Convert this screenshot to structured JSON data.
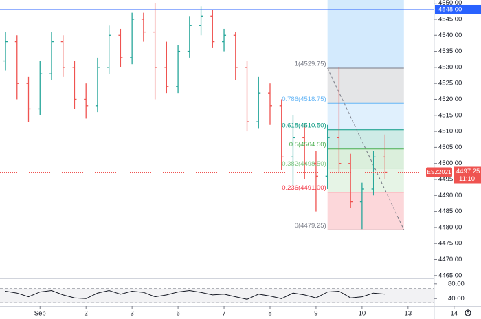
{
  "chart_data": {
    "type": "ohlc",
    "symbol": "ESZ2021",
    "last_time": "11:10",
    "up_color": "#26a69a",
    "down_color": "#ef5350",
    "x": [
      0.25,
      0.5,
      0.75,
      1.0,
      1.25,
      1.5,
      1.75,
      2.0,
      2.25,
      2.5,
      2.75,
      3.0,
      3.25,
      3.5,
      3.75,
      4.0,
      4.25,
      4.5,
      4.75,
      5.0,
      5.25,
      5.5,
      5.75,
      6.0,
      6.25,
      6.5,
      6.75,
      7.0,
      7.25,
      7.5,
      7.75,
      8.0,
      8.25,
      8.5
    ],
    "open": [
      4532,
      4538,
      4525,
      4517,
      4528,
      4538,
      4530,
      4520,
      4518,
      4530,
      4540,
      4533,
      4545,
      4541,
      4530,
      4524,
      4535,
      4543,
      4546,
      4538,
      4540,
      4530,
      4513,
      4522,
      4518,
      4502,
      4508,
      4500,
      4496,
      4508,
      4500,
      4488,
      4492,
      4502
    ],
    "high": [
      4541,
      4540,
      4527,
      4532,
      4541,
      4540,
      4532,
      4525,
      4533,
      4543,
      4542,
      4547,
      4547,
      4550,
      4538,
      4537,
      4546,
      4549,
      4548,
      4542,
      4541,
      4532,
      4527,
      4525,
      4520,
      4515,
      4512,
      4504,
      4512,
      4530,
      4503,
      4494,
      4504,
      4509
    ],
    "low": [
      4529,
      4520,
      4513,
      4515,
      4526,
      4527,
      4517,
      4514,
      4516,
      4528,
      4530,
      4531,
      4538,
      4520,
      4522,
      4522,
      4533,
      4540,
      4536,
      4535,
      4526,
      4510,
      4511,
      4512,
      4498,
      4493,
      4495,
      4485,
      4492,
      4497,
      4486,
      4479.5,
      4490,
      4495
    ],
    "close": [
      4538,
      4525,
      4517,
      4528,
      4538,
      4530,
      4520,
      4518,
      4530,
      4540,
      4533,
      4545,
      4541,
      4530,
      4524,
      4535,
      4543,
      4546,
      4538,
      4540,
      4530,
      4513,
      4522,
      4518,
      4502,
      4508,
      4500,
      4496,
      4508,
      4500,
      4488,
      4492,
      4502,
      4497.25
    ],
    "xlim": [
      0.13,
      9.57
    ],
    "xticks": [
      {
        "value": 1,
        "label": "Sep"
      },
      {
        "value": 2,
        "label": "2"
      },
      {
        "value": 3,
        "label": "3"
      },
      {
        "value": 4,
        "label": "6"
      },
      {
        "value": 5,
        "label": "7"
      },
      {
        "value": 6,
        "label": "8"
      },
      {
        "value": 7,
        "label": "9"
      },
      {
        "value": 8,
        "label": "10"
      },
      {
        "value": 9,
        "label": "13"
      },
      {
        "value": 10,
        "label": "14"
      }
    ],
    "ylim": [
      4464.1,
      4551
    ],
    "yticks": [
      {
        "value": 4550,
        "label": "4550.00"
      },
      {
        "value": 4545,
        "label": "4545.00"
      },
      {
        "value": 4540,
        "label": "4540.00"
      },
      {
        "value": 4535,
        "label": "4535.00"
      },
      {
        "value": 4530,
        "label": "4530.00"
      },
      {
        "value": 4525,
        "label": "4525.00"
      },
      {
        "value": 4520,
        "label": "4520.00"
      },
      {
        "value": 4515,
        "label": "4515.00"
      },
      {
        "value": 4510,
        "label": "4510.00"
      },
      {
        "value": 4505,
        "label": "4505.00"
      },
      {
        "value": 4500,
        "label": "4500.00"
      },
      {
        "value": 4495,
        "label": "4495.00"
      },
      {
        "value": 4490,
        "label": "4490.00"
      },
      {
        "value": 4485,
        "label": "4485.00"
      },
      {
        "value": 4480,
        "label": "4480.00"
      },
      {
        "value": 4475,
        "label": "4475.00"
      },
      {
        "value": 4470,
        "label": "4470.00"
      },
      {
        "value": 4465,
        "label": "4465.00"
      }
    ],
    "hline": {
      "value": 4548,
      "label": "4548.00",
      "color": "#2962ff"
    },
    "fib": {
      "x": [
        7.25,
        8.91
      ],
      "levels": [
        {
          "value": 4529.75,
          "label": "1(4529.75)",
          "color": "#787b86"
        },
        {
          "value": 4518.75,
          "label": "0.786(4518.75)",
          "color": "#64b5f6"
        },
        {
          "value": 4510.5,
          "label": "0.618(4510.50)",
          "color": "#089981"
        },
        {
          "value": 4504.5,
          "label": "0.5(4504.50)",
          "color": "#4caf50"
        },
        {
          "value": 4498.5,
          "label": "0.382(4498.50)",
          "color": "#81c784"
        },
        {
          "value": 4491,
          "label": "0.236(4491.00)",
          "color": "#f23645"
        },
        {
          "value": 4479.25,
          "label": "0(4479.25)",
          "color": "#787b86"
        }
      ]
    },
    "oscillator": {
      "values": [
        60,
        55,
        45,
        58,
        62,
        50,
        42,
        40,
        55,
        62,
        52,
        60,
        57,
        45,
        50,
        58,
        62,
        57,
        50,
        52,
        45,
        38,
        52,
        47,
        40,
        55,
        50,
        42,
        58,
        60,
        42,
        45,
        55,
        52
      ],
      "ylim": [
        20,
        92.7
      ],
      "yticks": [
        {
          "value": 80,
          "label": "80.00"
        },
        {
          "value": 40,
          "label": "40.00"
        }
      ],
      "band": [
        29,
        67
      ]
    }
  }
}
